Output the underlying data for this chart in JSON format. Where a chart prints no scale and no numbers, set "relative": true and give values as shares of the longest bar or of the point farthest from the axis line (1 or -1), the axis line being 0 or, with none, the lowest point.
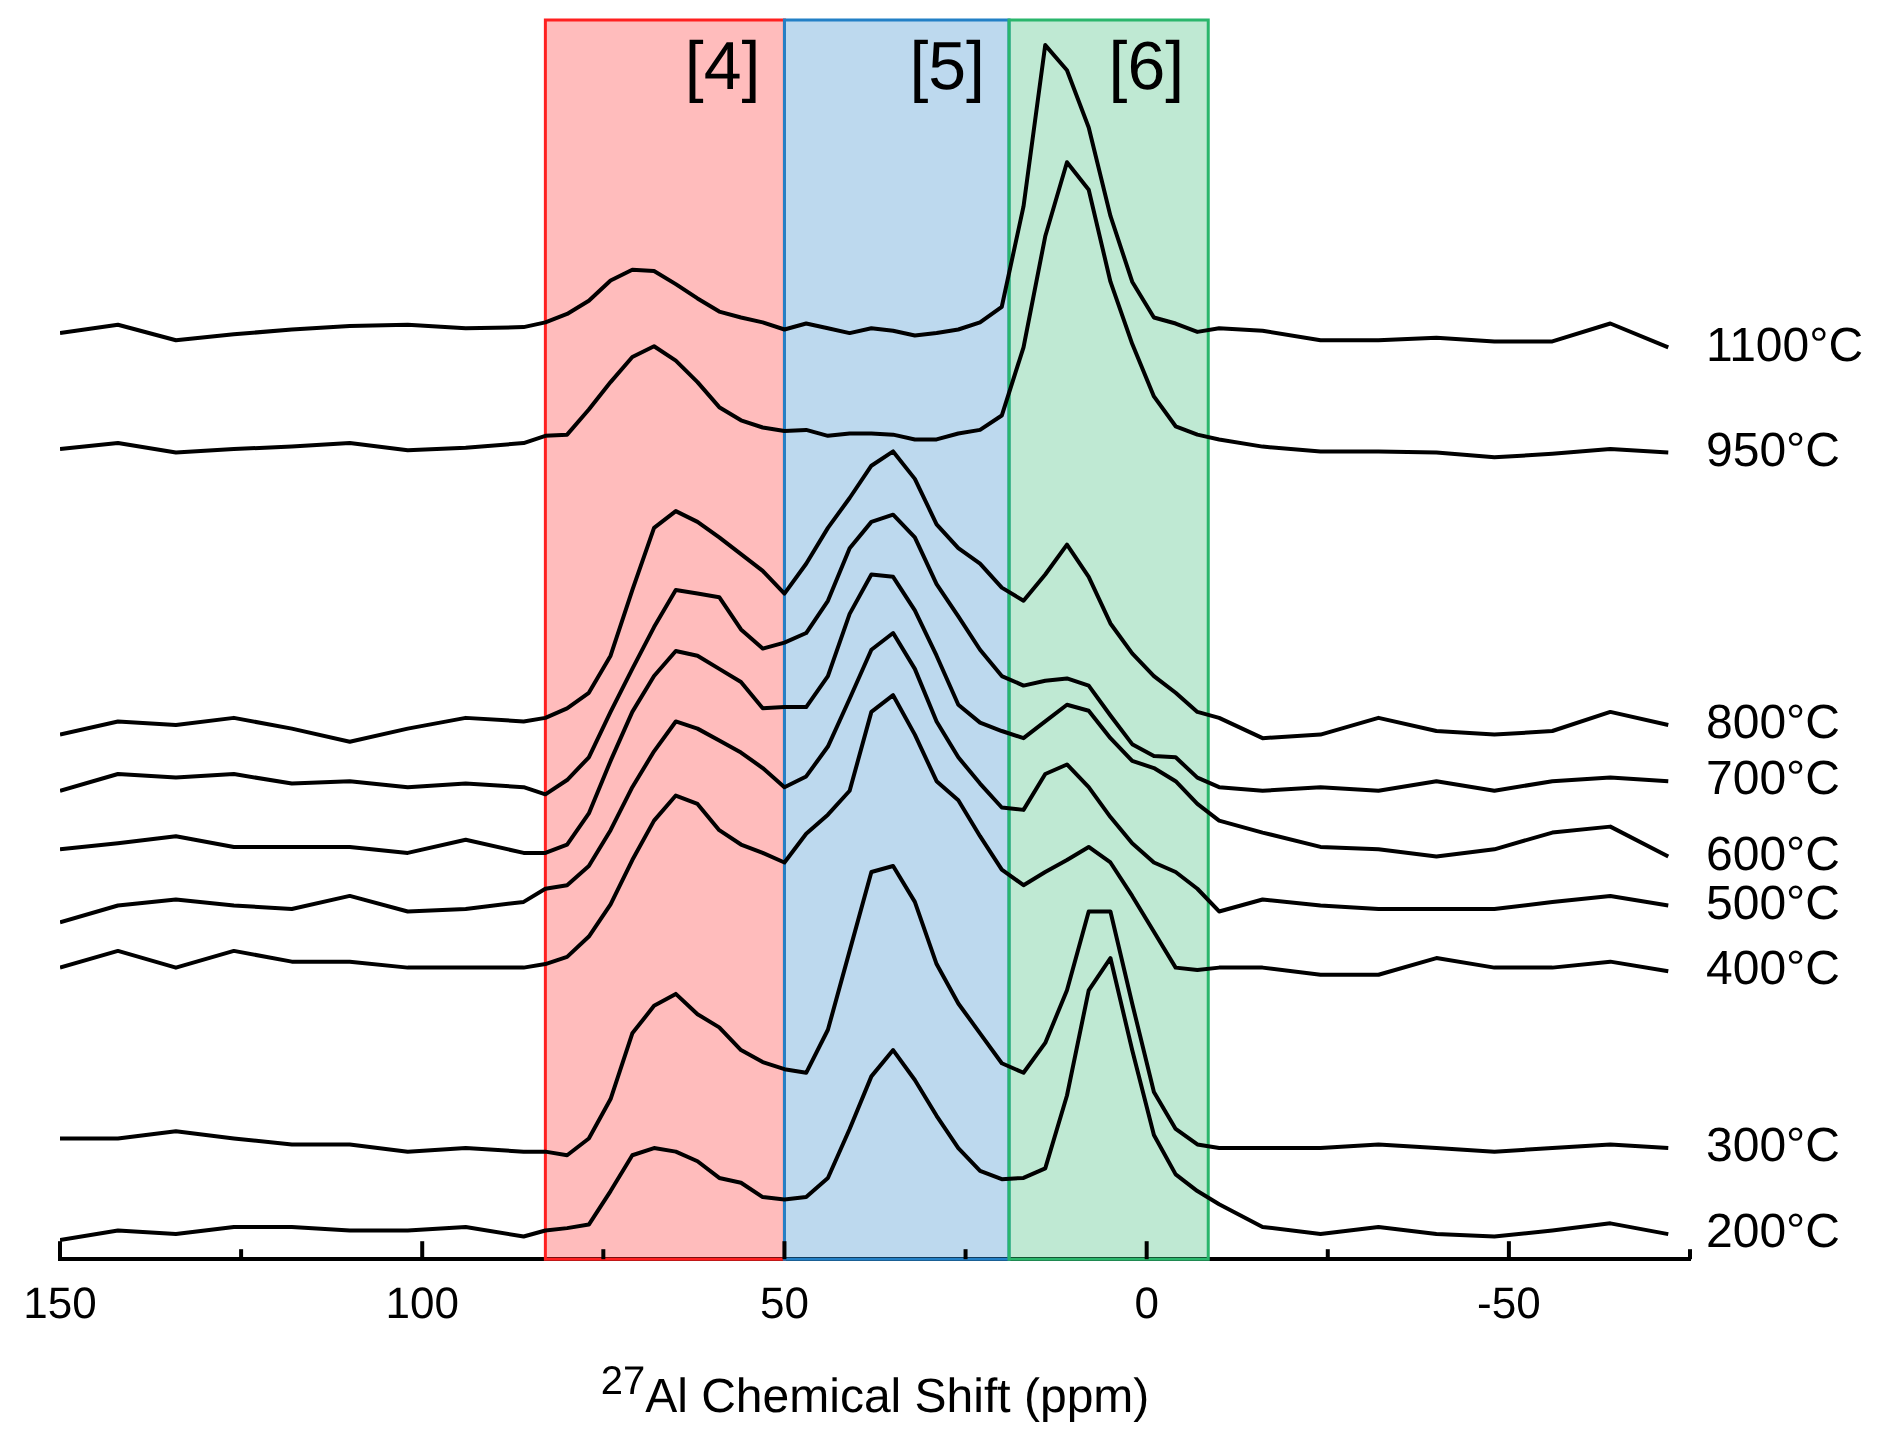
{
  "chart_data": {
    "type": "line",
    "relative": true,
    "xlabel": "$^{27}$Al Chemical Shift (ppm)",
    "xlim": [
      150,
      -75
    ],
    "xticks": [
      150,
      {
        "value": 125,
        "label": null
      },
      100,
      {
        "value": 75,
        "label": null
      },
      50,
      {
        "value": 25,
        "label": null
      },
      0,
      {
        "value": -25,
        "label": null
      },
      -50,
      {
        "value": -75,
        "label": null
      }
    ],
    "x": [
      150,
      142,
      134,
      126,
      118,
      110,
      102,
      94,
      86,
      83,
      80,
      77,
      74,
      71,
      68,
      65,
      62,
      59,
      56,
      53,
      50,
      47,
      44,
      41,
      38,
      35,
      32,
      29,
      26,
      23,
      20,
      17,
      14,
      11,
      8,
      5,
      2,
      -1,
      -4,
      -7,
      -10,
      -16,
      -24,
      -32,
      -40,
      -48,
      -56,
      -64,
      -72
    ],
    "bands": [
      {
        "axis": "x",
        "from": 83,
        "to": 50,
        "label": "[4]",
        "color": "#ff2020"
      },
      {
        "axis": "x",
        "from": 50,
        "to": 19,
        "label": "[5]",
        "color": "#2380c6"
      },
      {
        "axis": "x",
        "from": 19,
        "to": -8.5,
        "label": "[6]",
        "color": "#2ab66c"
      }
    ],
    "series": [
      {
        "name": "1100°C",
        "color": "#000000",
        "values": [
          0.759,
          0.766,
          0.753,
          0.758,
          0.762,
          0.765,
          0.766,
          0.763,
          0.764,
          0.768,
          0.775,
          0.786,
          0.803,
          0.812,
          0.811,
          0.8,
          0.788,
          0.777,
          0.772,
          0.768,
          0.762,
          0.767,
          0.763,
          0.759,
          0.763,
          0.761,
          0.757,
          0.759,
          0.762,
          0.768,
          0.781,
          0.865,
          1,
          0.979,
          0.931,
          0.857,
          0.802,
          0.772,
          0.767,
          0.76,
          0.763,
          0.761,
          0.753,
          0.753,
          0.755,
          0.752,
          0.752,
          0.767,
          0.747
        ]
      },
      {
        "name": "950°C",
        "color": "#000000",
        "values": [
          0.662,
          0.667,
          0.659,
          0.662,
          0.664,
          0.667,
          0.661,
          0.663,
          0.667,
          0.673,
          0.674,
          0.695,
          0.718,
          0.739,
          0.748,
          0.736,
          0.718,
          0.697,
          0.686,
          0.68,
          0.677,
          0.678,
          0.673,
          0.675,
          0.675,
          0.674,
          0.67,
          0.67,
          0.675,
          0.678,
          0.69,
          0.747,
          0.84,
          0.902,
          0.879,
          0.802,
          0.75,
          0.706,
          0.681,
          0.674,
          0.67,
          0.664,
          0.66,
          0.66,
          0.659,
          0.655,
          0.658,
          0.662,
          0.659
        ]
      },
      {
        "name": "800°C",
        "color": "#000000",
        "values": [
          0.423,
          0.434,
          0.431,
          0.437,
          0.428,
          0.417,
          0.428,
          0.437,
          0.434,
          0.437,
          0.445,
          0.458,
          0.489,
          0.544,
          0.596,
          0.61,
          0.601,
          0.588,
          0.574,
          0.56,
          0.541,
          0.566,
          0.596,
          0.621,
          0.648,
          0.66,
          0.637,
          0.599,
          0.579,
          0.566,
          0.546,
          0.535,
          0.557,
          0.582,
          0.555,
          0.516,
          0.491,
          0.472,
          0.458,
          0.442,
          0.437,
          0.42,
          0.423,
          0.437,
          0.426,
          0.423,
          0.426,
          0.442,
          0.431
        ]
      },
      {
        "name": "700°C",
        "color": "#000000",
        "values": [
          0.376,
          0.39,
          0.387,
          0.39,
          0.382,
          0.384,
          0.379,
          0.382,
          0.379,
          0.373,
          0.385,
          0.404,
          0.442,
          0.478,
          0.513,
          0.544,
          0.541,
          0.538,
          0.511,
          0.495,
          0.5,
          0.508,
          0.535,
          0.579,
          0.601,
          0.607,
          0.588,
          0.549,
          0.522,
          0.494,
          0.472,
          0.464,
          0.468,
          0.47,
          0.464,
          0.439,
          0.415,
          0.405,
          0.404,
          0.387,
          0.379,
          0.376,
          0.379,
          0.376,
          0.384,
          0.376,
          0.384,
          0.387,
          0.384
        ]
      },
      {
        "name": "600°C",
        "color": "#000000",
        "values": [
          0.327,
          0.332,
          0.338,
          0.329,
          0.329,
          0.329,
          0.324,
          0.335,
          0.324,
          0.324,
          0.331,
          0.357,
          0.401,
          0.442,
          0.472,
          0.493,
          0.489,
          0.478,
          0.467,
          0.445,
          0.446,
          0.446,
          0.472,
          0.524,
          0.557,
          0.555,
          0.527,
          0.489,
          0.448,
          0.433,
          0.426,
          0.42,
          0.434,
          0.448,
          0.443,
          0.42,
          0.401,
          0.395,
          0.384,
          0.365,
          0.351,
          0.341,
          0.329,
          0.327,
          0.321,
          0.327,
          0.341,
          0.346,
          0.321
        ]
      },
      {
        "name": "500°C",
        "color": "#000000",
        "values": [
          0.266,
          0.28,
          0.285,
          0.28,
          0.277,
          0.288,
          0.275,
          0.277,
          0.283,
          0.294,
          0.297,
          0.313,
          0.343,
          0.379,
          0.409,
          0.434,
          0.428,
          0.418,
          0.408,
          0.395,
          0.379,
          0.388,
          0.413,
          0.453,
          0.494,
          0.508,
          0.478,
          0.434,
          0.404,
          0.382,
          0.362,
          0.36,
          0.39,
          0.398,
          0.379,
          0.354,
          0.332,
          0.316,
          0.308,
          0.294,
          0.275,
          0.285,
          0.28,
          0.277,
          0.277,
          0.277,
          0.283,
          0.288,
          0.28
        ]
      },
      {
        "name": "400°C",
        "color": "#000000",
        "values": [
          0.228,
          0.242,
          0.228,
          0.242,
          0.233,
          0.233,
          0.228,
          0.228,
          0.228,
          0.231,
          0.237,
          0.254,
          0.281,
          0.318,
          0.351,
          0.372,
          0.365,
          0.343,
          0.331,
          0.324,
          0.316,
          0.34,
          0.356,
          0.376,
          0.442,
          0.456,
          0.423,
          0.384,
          0.368,
          0.338,
          0.31,
          0.297,
          0.308,
          0.318,
          0.329,
          0.316,
          0.288,
          0.258,
          0.228,
          0.226,
          0.228,
          0.228,
          0.222,
          0.222,
          0.236,
          0.228,
          0.228,
          0.233,
          0.225
        ]
      },
      {
        "name": "300°C",
        "color": "#000000",
        "values": [
          0.085,
          0.085,
          0.091,
          0.085,
          0.08,
          0.08,
          0.074,
          0.077,
          0.074,
          0.074,
          0.071,
          0.085,
          0.118,
          0.173,
          0.196,
          0.206,
          0.189,
          0.178,
          0.159,
          0.149,
          0.143,
          0.14,
          0.176,
          0.242,
          0.308,
          0.313,
          0.283,
          0.231,
          0.198,
          0.173,
          0.148,
          0.14,
          0.165,
          0.209,
          0.275,
          0.275,
          0.198,
          0.124,
          0.093,
          0.08,
          0.077,
          0.077,
          0.077,
          0.08,
          0.077,
          0.074,
          0.077,
          0.08,
          0.077
        ]
      },
      {
        "name": "200°C",
        "color": "#000000",
        "values": [
          0,
          0.008,
          0.005,
          0.011,
          0.011,
          0.008,
          0.008,
          0.011,
          0.003,
          0.008,
          0.01,
          0.013,
          0.041,
          0.071,
          0.077,
          0.074,
          0.066,
          0.052,
          0.048,
          0.036,
          0.034,
          0.036,
          0.052,
          0.093,
          0.137,
          0.159,
          0.134,
          0.104,
          0.077,
          0.058,
          0.051,
          0.052,
          0.06,
          0.121,
          0.209,
          0.236,
          0.159,
          0.088,
          0.055,
          0.041,
          0.03,
          0.011,
          0.005,
          0.011,
          0.005,
          0.003,
          0.008,
          0.014,
          0.005
        ]
      }
    ]
  }
}
